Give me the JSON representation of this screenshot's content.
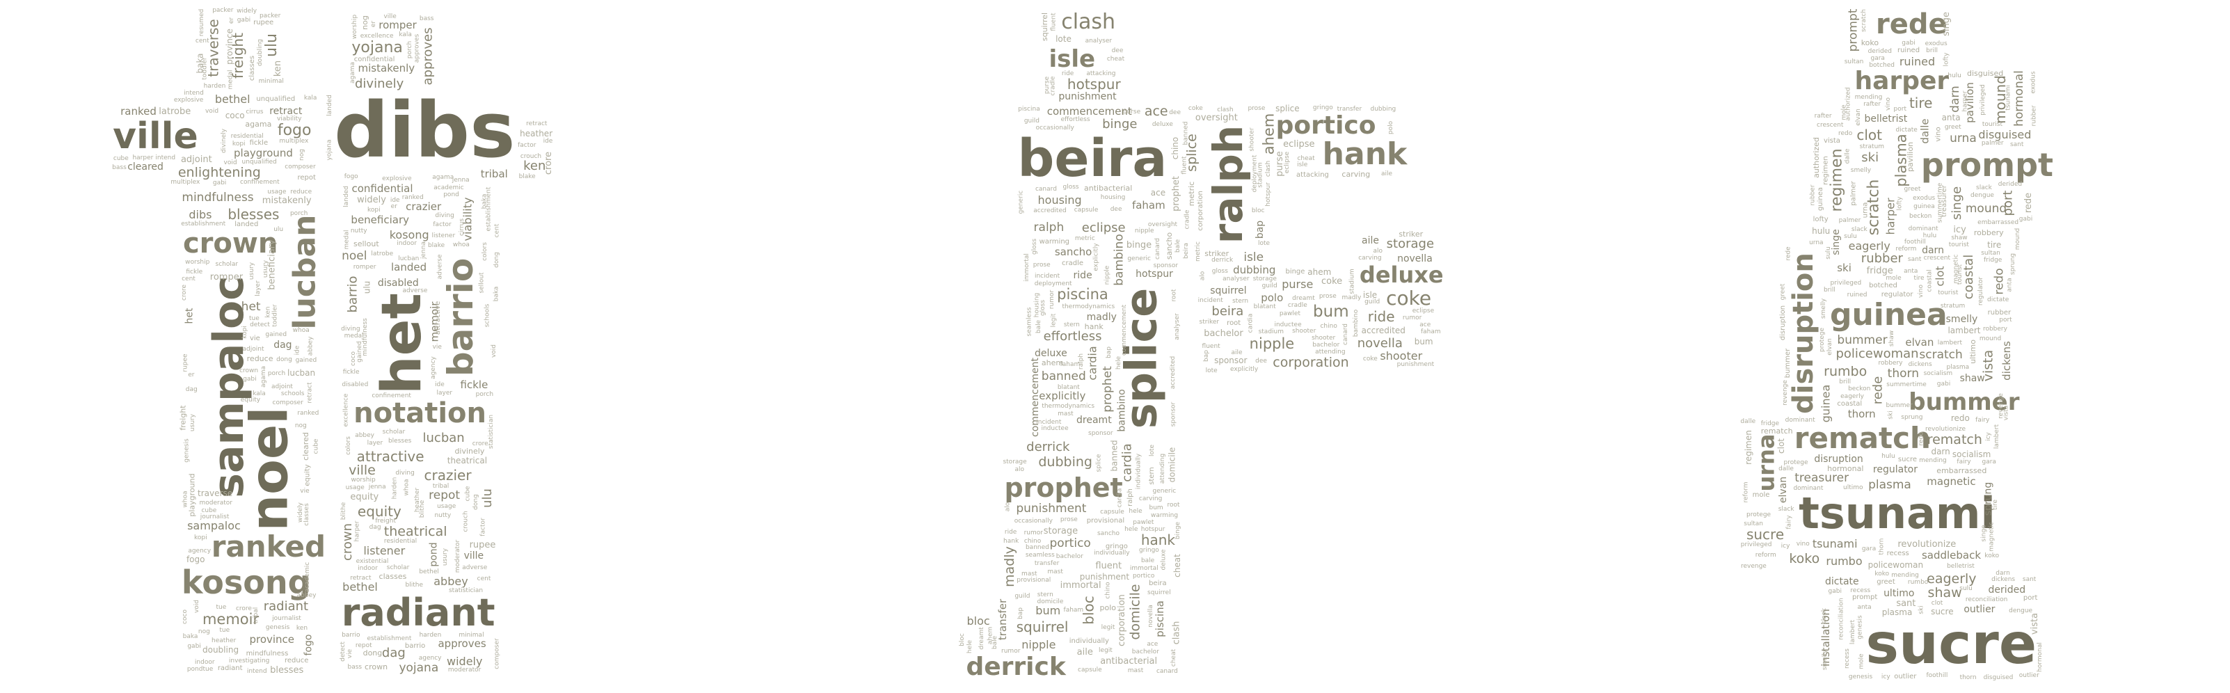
{
  "palette": {
    "ink": "#86836f",
    "ink_dark": "#6f6c59",
    "ink_light": "#aeac9c",
    "background": "#ffffff"
  },
  "clouds": [
    {
      "id": "figure-pair-left",
      "words": [
        "dibs",
        "het",
        "noel",
        "sampaloc",
        "radiant",
        "ville",
        "barrio",
        "kosong",
        "lucban",
        "ranked",
        "notation",
        "crown",
        "yojana",
        "ulu",
        "memoir",
        "traverse",
        "attractive",
        "equity",
        "fogo",
        "approves",
        "blesses",
        "enlightening",
        "crazier",
        "bethel",
        "theatrical",
        "confidential",
        "freight",
        "romper",
        "playground",
        "beneficiary",
        "mistakenly",
        "widely",
        "fickle",
        "divinely",
        "landed",
        "dag",
        "ken",
        "retract",
        "crore",
        "repot",
        "listener",
        "cleared",
        "viability",
        "rupee",
        "adjoint",
        "mindfulness",
        "province",
        "coco",
        "abbey",
        "tribal",
        "baka",
        "classes",
        "sellout",
        "reduce",
        "nog",
        "vie",
        "agama",
        "whoa",
        "disabled",
        "er",
        "pond",
        "harden",
        "latrobe",
        "cent",
        "doubling",
        "packer",
        "heather",
        "indoor",
        "residential",
        "scholar",
        "explosive",
        "genesis",
        "usage",
        "factor",
        "dong",
        "tue",
        "harper",
        "nutty",
        "ide",
        "kala",
        "unqualified",
        "bass",
        "composer",
        "jenna",
        "detect",
        "diving",
        "toddler",
        "porch",
        "cube",
        "confinement",
        "excellence",
        "kopi",
        "establishment",
        "moderator",
        "multiplex",
        "layer",
        "existential",
        "colors",
        "medal",
        "journalist",
        "intend",
        "schools",
        "blake",
        "adverse",
        "resumed",
        "cirrus",
        "worship",
        "statistician",
        "crouch",
        "investigating",
        "gabi",
        "blithe",
        "usury",
        "academic",
        "minimal",
        "agency",
        "gained",
        "void"
      ]
    },
    {
      "id": "figure-archer",
      "words": [
        "polo",
        "beira",
        "splice",
        "ralph",
        "hank",
        "prophet",
        "derrick",
        "portico",
        "isle",
        "deluxe",
        "clash",
        "coke",
        "bum",
        "binge",
        "bloc",
        "piscina",
        "madly",
        "ahem",
        "punishment",
        "nipple",
        "cardia",
        "bambino",
        "ride",
        "eclipse",
        "hotspur",
        "storage",
        "squirrel",
        "dubbing",
        "commencement",
        "corporation",
        "explicitly",
        "novella",
        "ace",
        "domicile",
        "banned",
        "fluent",
        "antibacterial",
        "shooter",
        "aile",
        "purse",
        "sancho",
        "effortless",
        "accredited",
        "transfer",
        "oversight",
        "lote",
        "striker",
        "housing",
        "metric",
        "bachelor",
        "faham",
        "dreamt",
        "sponsor",
        "chino",
        "carving",
        "alo",
        "dee",
        "rumor",
        "mast",
        "cheat",
        "bap",
        "stern",
        "incident",
        "blatant",
        "immortal",
        "stadium",
        "gloss",
        "individually",
        "inductee",
        "analyser",
        "warming",
        "gringo",
        "root",
        "hele",
        "provisional",
        "occasionally",
        "attacking",
        "attending",
        "seamless",
        "thermodynamics",
        "generic",
        "prose",
        "cradle",
        "capsule",
        "pawlet",
        "deployment",
        "legit",
        "guild",
        "canard",
        "bale"
      ]
    },
    {
      "id": "figure-mermaid",
      "words": [
        "sucre",
        "saddleback",
        "tsunami",
        "installation",
        "prompt",
        "guinea",
        "rematch",
        "rede",
        "disruption",
        "harper",
        "bummer",
        "urna",
        "clot",
        "plasma",
        "singe",
        "scratch",
        "mound",
        "darn",
        "ski",
        "vista",
        "eagerly",
        "regimen",
        "thorn",
        "hormonal",
        "tire",
        "redo",
        "elvan",
        "rumbo",
        "port",
        "magnetic",
        "koko",
        "rubber",
        "sprung",
        "ultimo",
        "dickens",
        "shaw",
        "policewoman",
        "outlier",
        "disguised",
        "coastal",
        "dalle",
        "treasurer",
        "regulator",
        "pavilion",
        "belletrist",
        "revolutionize",
        "authorized",
        "ruined",
        "embarrassed",
        "derided",
        "smelly",
        "icy",
        "fridge",
        "dictate",
        "botched",
        "lambert",
        "robbery",
        "privileged",
        "sant",
        "anta",
        "vino",
        "mole",
        "socialism",
        "greet",
        "slack",
        "palmer",
        "hulu",
        "recess",
        "gabi",
        "rafter",
        "brill",
        "lofty",
        "beckon",
        "tourist",
        "mending",
        "gara",
        "fairy",
        "dominant",
        "summertime",
        "reform",
        "exodus",
        "foothill",
        "protege",
        "sulu",
        "dengue",
        "reconciliation",
        "revenge",
        "sultan",
        "crescent",
        "genesis",
        "stratum"
      ]
    }
  ]
}
